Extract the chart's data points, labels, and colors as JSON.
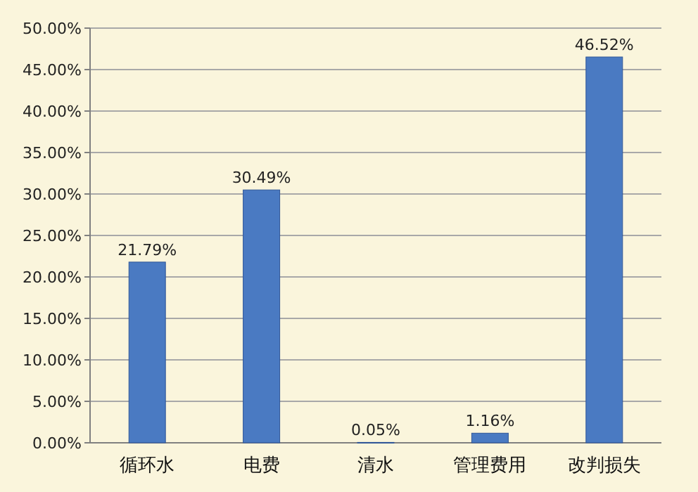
{
  "chart_data": {
    "type": "bar",
    "categories": [
      "循环水",
      "电费",
      "清水",
      "管理费用",
      "改判损失"
    ],
    "values": [
      21.79,
      30.49,
      0.05,
      1.16,
      46.52
    ],
    "value_labels": [
      "21.79%",
      "30.49%",
      "0.05%",
      "1.16%",
      "46.52%"
    ],
    "color": "#4a7ac2",
    "ylim": [
      0,
      50
    ],
    "yticks": [
      {
        "value": 0,
        "label": "0.00%"
      },
      {
        "value": 5,
        "label": "5.00%"
      },
      {
        "value": 10,
        "label": "10.00%"
      },
      {
        "value": 15,
        "label": "15.00%"
      },
      {
        "value": 20,
        "label": "20.00%"
      },
      {
        "value": 25,
        "label": "25.00%"
      },
      {
        "value": 30,
        "label": "30.00%"
      },
      {
        "value": 35,
        "label": "35.00%"
      },
      {
        "value": 40,
        "label": "40.00%"
      },
      {
        "value": 45,
        "label": "45.00%"
      },
      {
        "value": 50,
        "label": "50.00%"
      }
    ],
    "grid": true
  }
}
